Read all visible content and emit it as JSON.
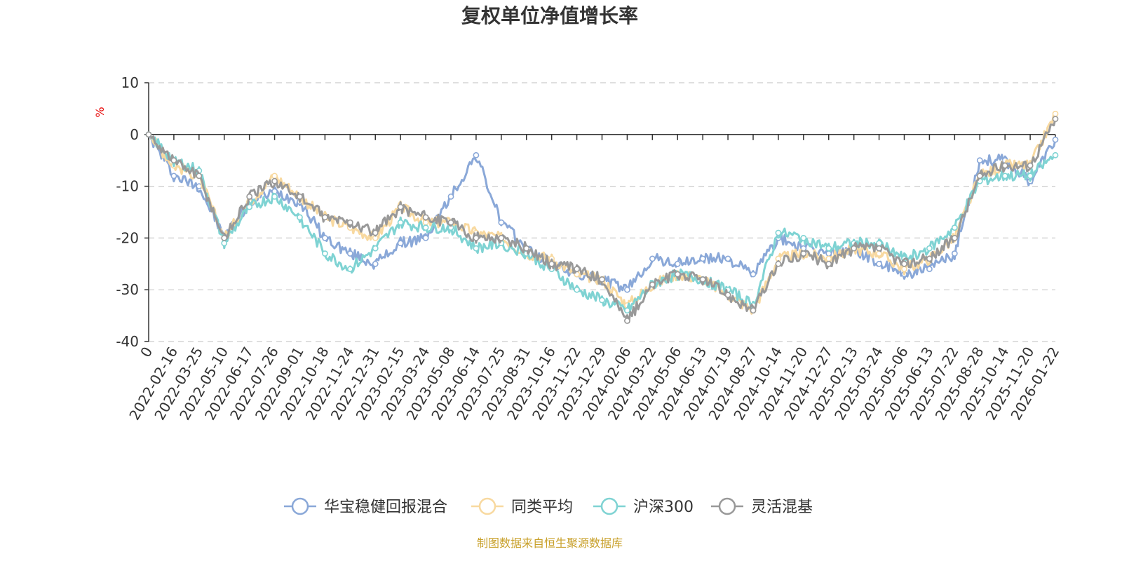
{
  "chart_data": {
    "type": "line",
    "title": "复权单位净值增长率",
    "unit_label": "%",
    "ylim": [
      -40,
      10
    ],
    "yticks": [
      10,
      0,
      -10,
      -20,
      -30,
      -40
    ],
    "grid": true,
    "legend_position": "bottom",
    "x_categories": [
      "0",
      "2022-02-16",
      "2022-03-25",
      "2022-05-10",
      "2022-06-17",
      "2022-07-26",
      "2022-09-01",
      "2022-10-18",
      "2022-11-24",
      "2022-12-31",
      "2023-02-15",
      "2023-03-24",
      "2023-05-08",
      "2023-06-14",
      "2023-07-25",
      "2023-08-31",
      "2023-10-16",
      "2023-11-22",
      "2023-12-29",
      "2024-02-06",
      "2024-03-22",
      "2024-05-06",
      "2024-06-13",
      "2024-07-19",
      "2024-08-27",
      "2024-10-14",
      "2024-11-20",
      "2024-12-27",
      "2025-02-13",
      "2025-03-24",
      "2025-05-06",
      "2025-06-13",
      "2025-07-22",
      "2025-08-28",
      "2025-10-14",
      "2025-11-20",
      "2026-01-22"
    ],
    "series": [
      {
        "name": "华宝稳健回报混合",
        "color": "#8aa8d8",
        "values": [
          0,
          -8,
          -10,
          -20,
          -13,
          -11,
          -13,
          -20,
          -23,
          -25,
          -21,
          -20,
          -12,
          -4,
          -17,
          -22,
          -25,
          -27,
          -28,
          -30,
          -24,
          -25,
          -24,
          -24,
          -27,
          -20,
          -22,
          -23,
          -22,
          -25,
          -27,
          -26,
          -23,
          -5,
          -5,
          -9,
          -1
        ]
      },
      {
        "name": "同类平均",
        "color": "#f8d9a0",
        "values": [
          0,
          -6,
          -8,
          -20,
          -13,
          -8,
          -12,
          -16,
          -18,
          -20,
          -14,
          -17,
          -17,
          -19,
          -20,
          -23,
          -24,
          -27,
          -28,
          -33,
          -29,
          -27,
          -28,
          -31,
          -34,
          -24,
          -23,
          -24,
          -22,
          -23,
          -26,
          -24,
          -20,
          -8,
          -6,
          -6,
          4
        ]
      },
      {
        "name": "沪深300",
        "color": "#7fd3d3",
        "values": [
          0,
          -5,
          -7,
          -21,
          -14,
          -12,
          -16,
          -23,
          -26,
          -22,
          -17,
          -18,
          -18,
          -22,
          -21,
          -23,
          -26,
          -30,
          -32,
          -34,
          -29,
          -27,
          -28,
          -30,
          -33,
          -19,
          -20,
          -22,
          -21,
          -21,
          -24,
          -22,
          -18,
          -9,
          -8,
          -8,
          -4
        ]
      },
      {
        "name": "灵活混基",
        "color": "#999999",
        "values": [
          0,
          -5,
          -8,
          -20,
          -12,
          -9,
          -12,
          -16,
          -17,
          -19,
          -14,
          -16,
          -17,
          -20,
          -20,
          -22,
          -25,
          -26,
          -28,
          -36,
          -29,
          -27,
          -28,
          -31,
          -34,
          -25,
          -23,
          -25,
          -22,
          -22,
          -25,
          -24,
          -20,
          -8,
          -6,
          -6,
          3
        ]
      }
    ],
    "source_text": "制图数据来自恒生聚源数据库"
  }
}
